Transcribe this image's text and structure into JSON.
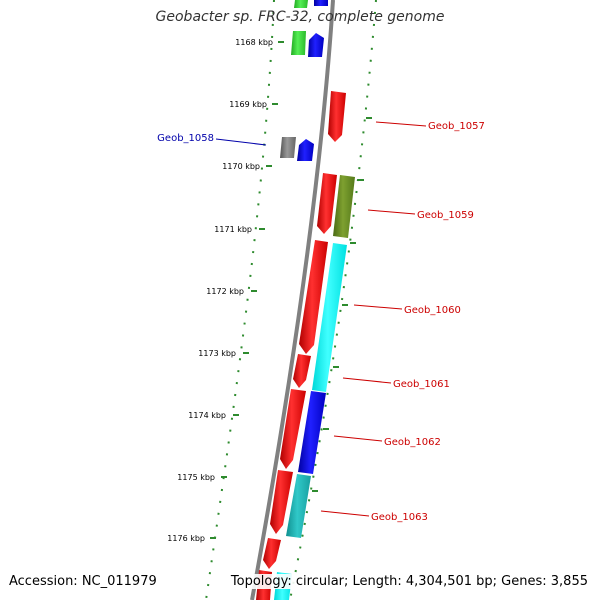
{
  "title": "Geobacter sp. FRC-32, complete genome",
  "footer": {
    "accession": "Accession: NC_011979",
    "summary": "Topology: circular; Length: 4,304,501 bp; Genes: 3,855"
  },
  "kbp_labels": [
    "1168 kbp",
    "1169 kbp",
    "1170 kbp",
    "1171 kbp",
    "1172 kbp",
    "1173 kbp",
    "1174 kbp",
    "1175 kbp",
    "1176 kbp"
  ],
  "gene_labels": {
    "g1057": "Geob_1057",
    "g1058": "Geob_1058",
    "g1059": "Geob_1059",
    "g1060": "Geob_1060",
    "g1061": "Geob_1061",
    "g1062": "Geob_1062",
    "g1063": "Geob_1063"
  },
  "colors": {
    "red": "#ff0000",
    "blue": "#0000ff",
    "cyan": "#00ffff",
    "teal": "#20c0c0",
    "olive": "#6b8e23",
    "green": "#33cc33",
    "gray": "#777777",
    "label_red": "#cc0000",
    "label_blue": "#0000aa",
    "tick_green": "#2e8b2e"
  }
}
